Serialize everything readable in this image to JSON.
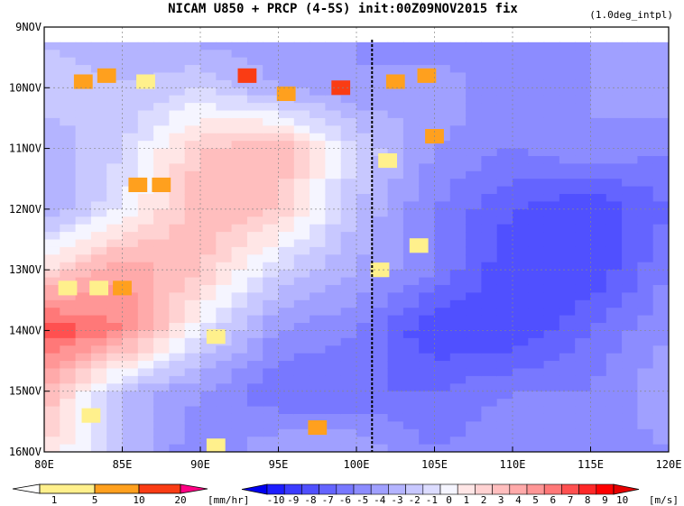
{
  "chart_data": {
    "type": "heatmap",
    "title": "NICAM  U850 + PRCP (4-5S) init:00Z09NOV2015 fix",
    "subtitle": "(1.0deg_intpl)",
    "x_ticks": [
      "80E",
      "85E",
      "90E",
      "95E",
      "100E",
      "105E",
      "110E",
      "115E",
      "120E"
    ],
    "x_values": [
      80,
      85,
      90,
      95,
      100,
      105,
      110,
      115,
      120
    ],
    "y_ticks": [
      "9NOV",
      "10NOV",
      "11NOV",
      "12NOV",
      "13NOV",
      "14NOV",
      "15NOV",
      "16NOV"
    ],
    "xlim": [
      80,
      120
    ],
    "ylim": [
      "9NOV",
      "16NOV"
    ],
    "grid": true,
    "reference_line_lon": 101,
    "u850": {
      "lons": [
        80,
        85,
        90,
        95,
        100,
        105,
        110,
        115,
        120
      ],
      "days": [
        9.3,
        10,
        11,
        12,
        13,
        14,
        15,
        16
      ],
      "values": [
        [
          -2,
          -3,
          -3,
          -4,
          -4,
          -5,
          -4,
          -4,
          -3
        ],
        [
          -1,
          -2,
          -1,
          -3,
          -4,
          -3,
          -5,
          -4,
          -3
        ],
        [
          -3,
          -1,
          3,
          4,
          -1,
          -4,
          -5,
          -4,
          -5
        ],
        [
          -3,
          0,
          4,
          3,
          -2,
          -5,
          -7,
          -8,
          -6
        ],
        [
          2,
          5,
          3,
          -1,
          -3,
          -5,
          -8,
          -8,
          -5
        ],
        [
          8,
          6,
          0,
          -4,
          -5,
          -8,
          -8,
          -6,
          -4
        ],
        [
          4,
          -2,
          -4,
          -6,
          -6,
          -6,
          -5,
          -5,
          -3
        ],
        [
          2,
          -2,
          -5,
          -3,
          -3,
          -5,
          -4,
          -5,
          -4
        ]
      ]
    },
    "prcp_cells": [
      {
        "lon": 84.0,
        "day": 9.8,
        "v": 6
      },
      {
        "lon": 82.5,
        "day": 9.9,
        "v": 7
      },
      {
        "lon": 86.5,
        "day": 9.9,
        "v": 3
      },
      {
        "lon": 93.0,
        "day": 9.8,
        "v": 12
      },
      {
        "lon": 95.5,
        "day": 10.1,
        "v": 8
      },
      {
        "lon": 99.0,
        "day": 10.0,
        "v": 14
      },
      {
        "lon": 102.5,
        "day": 9.9,
        "v": 5
      },
      {
        "lon": 104.5,
        "day": 9.8,
        "v": 6
      },
      {
        "lon": 105.0,
        "day": 10.8,
        "v": 9
      },
      {
        "lon": 102.0,
        "day": 11.2,
        "v": 3
      },
      {
        "lon": 86.0,
        "day": 11.6,
        "v": 9
      },
      {
        "lon": 87.5,
        "day": 11.6,
        "v": 6
      },
      {
        "lon": 83.5,
        "day": 13.3,
        "v": 4
      },
      {
        "lon": 85.0,
        "day": 13.3,
        "v": 7
      },
      {
        "lon": 81.5,
        "day": 13.3,
        "v": 4
      },
      {
        "lon": 101.5,
        "day": 13.0,
        "v": 3
      },
      {
        "lon": 104.0,
        "day": 12.6,
        "v": 2
      },
      {
        "lon": 91.0,
        "day": 14.1,
        "v": 2
      },
      {
        "lon": 97.5,
        "day": 15.6,
        "v": 8
      },
      {
        "lon": 91.0,
        "day": 15.9,
        "v": 3
      },
      {
        "lon": 83.0,
        "day": 15.4,
        "v": 3
      }
    ],
    "prcp_colorbar": {
      "unit": "[mm/hr]",
      "labels": [
        "1",
        "5",
        "10",
        "20"
      ],
      "colors": [
        "#ffffff",
        "#fff08c",
        "#ffa01e",
        "#fa3c14",
        "#ff0084"
      ]
    },
    "u_colorbar": {
      "unit": "[m/s]",
      "labels": [
        "-10",
        "-9",
        "-8",
        "-7",
        "-6",
        "-5",
        "-4",
        "-3",
        "-2",
        "-1",
        "0",
        "1",
        "2",
        "3",
        "4",
        "5",
        "6",
        "7",
        "8",
        "9",
        "10"
      ],
      "colors": [
        "#0000f0",
        "#1e1eff",
        "#3c3cff",
        "#5050ff",
        "#6464ff",
        "#7878ff",
        "#8c8cff",
        "#a0a0ff",
        "#b4b4ff",
        "#c8c8ff",
        "#dcdcff",
        "#f5f5ff",
        "#ffe6e6",
        "#ffd2d2",
        "#ffbebe",
        "#ffaaaa",
        "#ff9696",
        "#ff7878",
        "#ff5050",
        "#ff2828",
        "#ff0000",
        "#e60000"
      ]
    }
  }
}
